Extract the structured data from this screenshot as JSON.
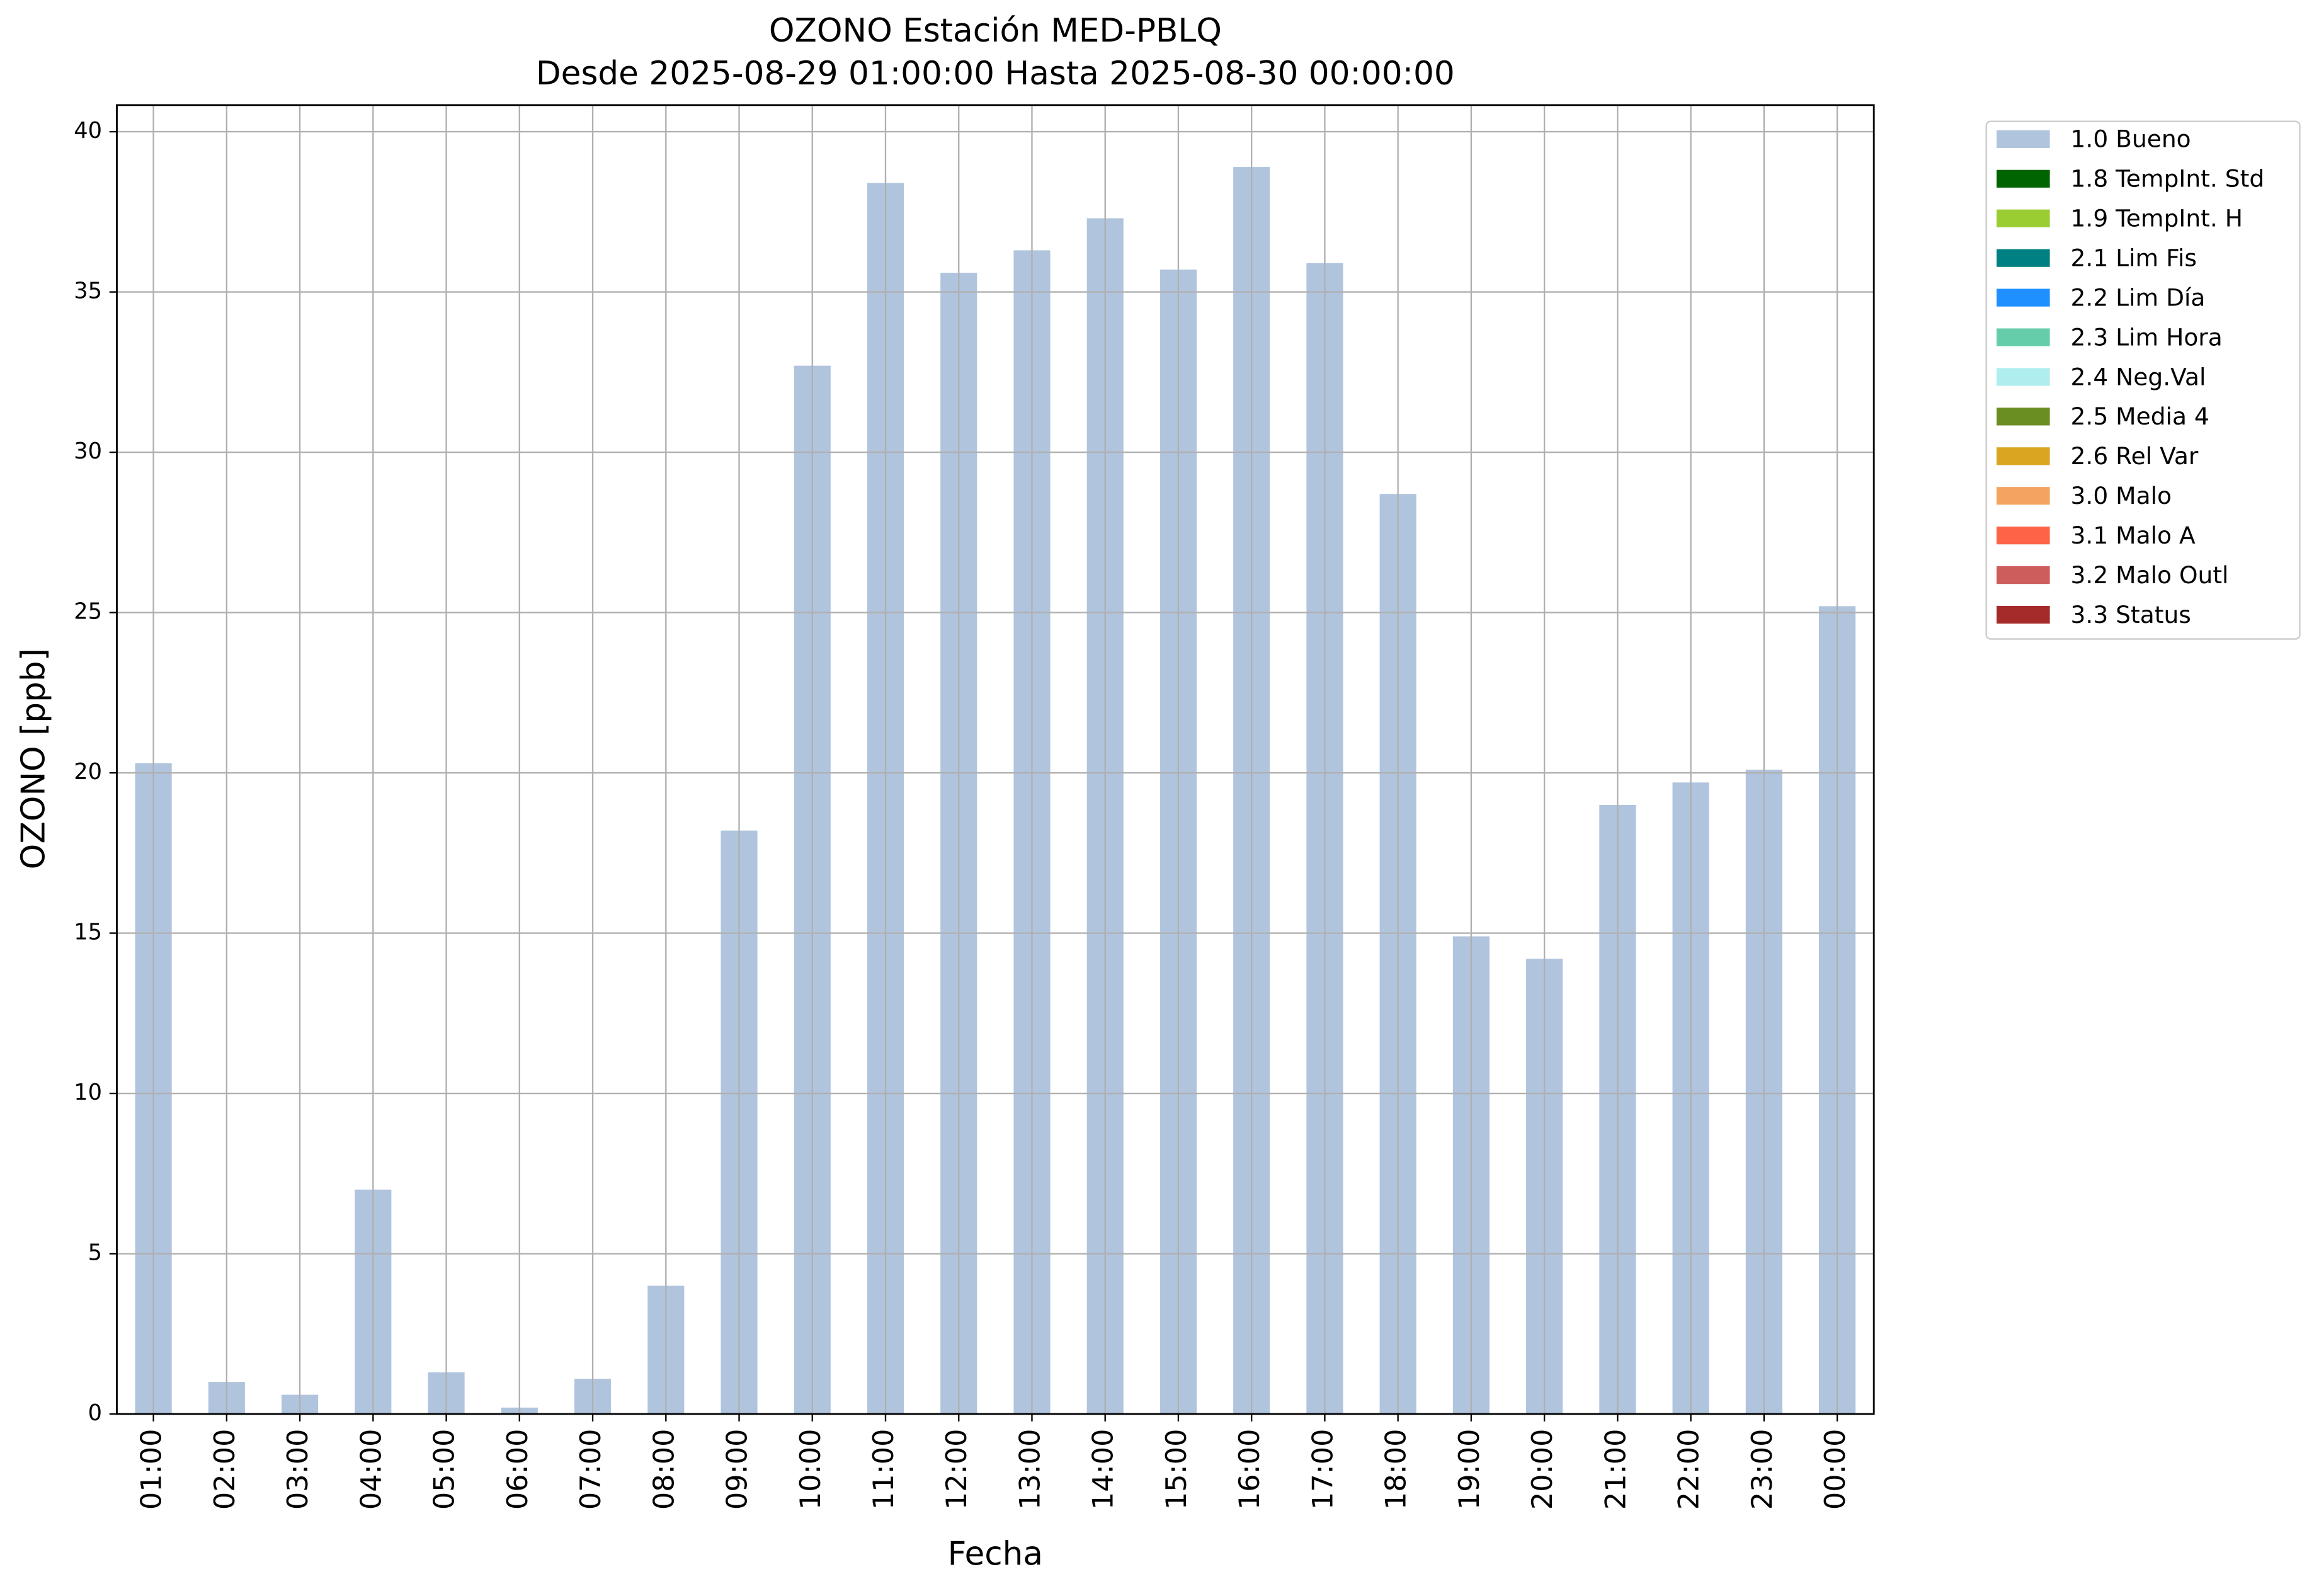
{
  "chart_data": {
    "type": "stacked-bar",
    "title": "OZONO Estación MED-PBLQ",
    "subtitle": "Desde 2025-08-29 01:00:00 Hasta 2025-08-30 00:00:00",
    "x_label": "Fecha",
    "y_label": "OZONO [ppb]",
    "categories": [
      "01:00",
      "02:00",
      "03:00",
      "04:00",
      "05:00",
      "06:00",
      "07:00",
      "08:00",
      "09:00",
      "10:00",
      "11:00",
      "12:00",
      "13:00",
      "14:00",
      "15:00",
      "16:00",
      "17:00",
      "18:00",
      "19:00",
      "20:00",
      "21:00",
      "22:00",
      "23:00",
      "00:00"
    ],
    "series": [
      {
        "name": "1.0 Bueno",
        "color": "#b0c4de",
        "values": [
          20.3,
          1.0,
          0.6,
          7.0,
          1.3,
          0.2,
          1.1,
          4.0,
          18.2,
          32.7,
          38.4,
          35.6,
          36.3,
          37.3,
          35.7,
          38.9,
          35.9,
          28.7,
          14.9,
          14.2,
          19.0,
          19.7,
          20.1,
          25.2
        ]
      },
      {
        "name": "1.8 TempInt. Std",
        "color": "#006400",
        "values": [
          0,
          0,
          0,
          0,
          0,
          0,
          0,
          0,
          0,
          0,
          0,
          0,
          0,
          0,
          0,
          0,
          0,
          0,
          0,
          0,
          0,
          0,
          0,
          0
        ]
      },
      {
        "name": "1.9 TempInt. H",
        "color": "#9acd32",
        "values": [
          0,
          0,
          0,
          0,
          0,
          0,
          0,
          0,
          0,
          0,
          0,
          0,
          0,
          0,
          0,
          0,
          0,
          0,
          0,
          0,
          0,
          0,
          0,
          0
        ]
      },
      {
        "name": "2.1 Lim Fis",
        "color": "#008080",
        "values": [
          0,
          0,
          0,
          0,
          0,
          0,
          0,
          0,
          0,
          0,
          0,
          0,
          0,
          0,
          0,
          0,
          0,
          0,
          0,
          0,
          0,
          0,
          0,
          0
        ]
      },
      {
        "name": "2.2 Lim Día",
        "color": "#1e90ff",
        "values": [
          0,
          0,
          0,
          0,
          0,
          0,
          0,
          0,
          0,
          0,
          0,
          0,
          0,
          0,
          0,
          0,
          0,
          0,
          0,
          0,
          0,
          0,
          0,
          0
        ]
      },
      {
        "name": "2.3 Lim Hora",
        "color": "#66cdaa",
        "values": [
          0,
          0,
          0,
          0,
          0,
          0,
          0,
          0,
          0,
          0,
          0,
          0,
          0,
          0,
          0,
          0,
          0,
          0,
          0,
          0,
          0,
          0,
          0,
          0
        ]
      },
      {
        "name": "2.4 Neg.Val",
        "color": "#afeeee",
        "values": [
          0,
          0,
          0,
          0,
          0,
          0,
          0,
          0,
          0,
          0,
          0,
          0,
          0,
          0,
          0,
          0,
          0,
          0,
          0,
          0,
          0,
          0,
          0,
          0
        ]
      },
      {
        "name": "2.5 Media 4",
        "color": "#6b8e23",
        "values": [
          0,
          0,
          0,
          0,
          0,
          0,
          0,
          0,
          0,
          0,
          0,
          0,
          0,
          0,
          0,
          0,
          0,
          0,
          0,
          0,
          0,
          0,
          0,
          0
        ]
      },
      {
        "name": "2.6 Rel Var",
        "color": "#daa520",
        "values": [
          0,
          0,
          0,
          0,
          0,
          0,
          0,
          0,
          0,
          0,
          0,
          0,
          0,
          0,
          0,
          0,
          0,
          0,
          0,
          0,
          0,
          0,
          0,
          0
        ]
      },
      {
        "name": "3.0 Malo",
        "color": "#f4a460",
        "values": [
          0,
          0,
          0,
          0,
          0,
          0,
          0,
          0,
          0,
          0,
          0,
          0,
          0,
          0,
          0,
          0,
          0,
          0,
          0,
          0,
          0,
          0,
          0,
          0
        ]
      },
      {
        "name": "3.1 Malo A",
        "color": "#ff6347",
        "values": [
          0,
          0,
          0,
          0,
          0,
          0,
          0,
          0,
          0,
          0,
          0,
          0,
          0,
          0,
          0,
          0,
          0,
          0,
          0,
          0,
          0,
          0,
          0,
          0
        ]
      },
      {
        "name": "3.2 Malo Outl",
        "color": "#cd5c5c",
        "values": [
          0,
          0,
          0,
          0,
          0,
          0,
          0,
          0,
          0,
          0,
          0,
          0,
          0,
          0,
          0,
          0,
          0,
          0,
          0,
          0,
          0,
          0,
          0,
          0
        ]
      },
      {
        "name": "3.3 Status",
        "color": "#a52a2a",
        "values": [
          0,
          0,
          0,
          0,
          0,
          0,
          0,
          0,
          0,
          0,
          0,
          0,
          0,
          0,
          0,
          0,
          0,
          0,
          0,
          0,
          0,
          0,
          0,
          0
        ]
      }
    ],
    "ylim": [
      0,
      40.83
    ],
    "yticks": [
      0,
      5,
      10,
      15,
      20,
      25,
      30,
      35,
      40
    ],
    "grid": true,
    "legend": "outside-right"
  }
}
